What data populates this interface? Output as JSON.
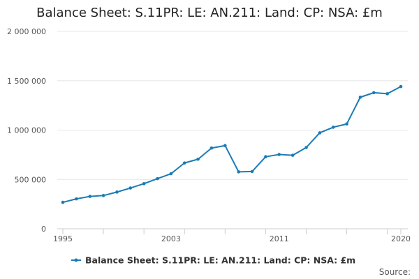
{
  "chart_data": {
    "type": "line",
    "title": "Balance Sheet: S.11PR: LE: AN.211: Land: CP: NSA: £m",
    "xlabel": "",
    "ylabel": "",
    "x": [
      1995,
      1996,
      1997,
      1998,
      1999,
      2000,
      2001,
      2002,
      2003,
      2004,
      2005,
      2006,
      2007,
      2008,
      2009,
      2010,
      2011,
      2012,
      2013,
      2014,
      2015,
      2016,
      2017,
      2018,
      2019,
      2020
    ],
    "series": [
      {
        "name": "Balance Sheet: S.11PR: LE: AN.211: Land: CP: NSA: £m",
        "values": [
          268000,
          303000,
          328000,
          337000,
          372000,
          413000,
          457000,
          508000,
          558000,
          667000,
          705000,
          818000,
          843000,
          577000,
          580000,
          730000,
          753000,
          745000,
          823000,
          972000,
          1029000,
          1062000,
          1333000,
          1379000,
          1368000,
          1441000
        ]
      }
    ],
    "ylim": [
      0,
      2000000
    ],
    "xlim": [
      1995,
      2020
    ],
    "y_ticks": [
      0,
      500000,
      1000000,
      1500000,
      2000000
    ],
    "y_tick_labels": [
      "0",
      "500 000",
      "1 000 000",
      "1 500 000",
      "2 000 000"
    ],
    "x_tick_labels": [
      "1995",
      "2003",
      "2011",
      "2020"
    ],
    "x_tick_values": [
      1995,
      2003,
      2011,
      2020
    ],
    "grid": "horizontal",
    "legend_position": "bottom",
    "line_color": "#1a7bb5",
    "source_label": "Source:"
  }
}
